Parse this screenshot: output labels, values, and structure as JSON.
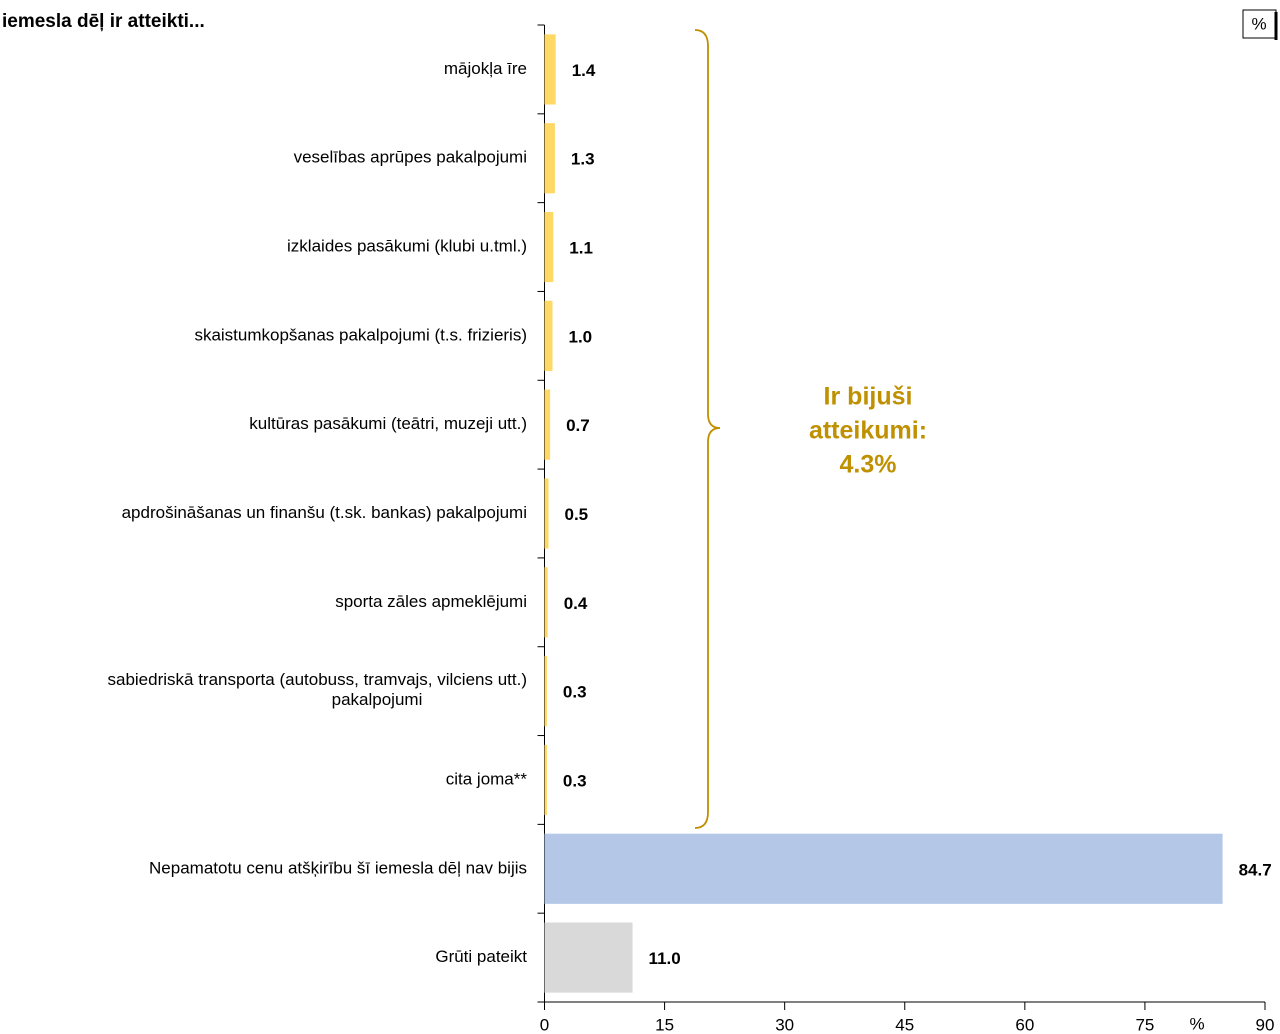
{
  "chart_data": {
    "type": "hbar",
    "title": "iemesla dēļ ir atteikti...",
    "unit_box": "%",
    "xlabel": "%",
    "annotation": [
      "Ir bijuši",
      "atteikumi:",
      "4.3%"
    ],
    "categories": [
      "mājokļa īre",
      "veselības aprūpes pakalpojumi",
      "izklaides pasākumi (klubi u.tml.)",
      "skaistumkopšanas pakalpojumi (t.s. frizieris)",
      "kultūras pasākumi (teātri, muzeji utt.)",
      "apdrošināšanas un finanšu (t.sk. bankas) pakalpojumi",
      "sporta zāles apmeklējumi",
      "sabiedriskā transporta (autobuss, tramvajs, vilciens utt.)\npakalpojumi",
      "cita joma**",
      "Nepamatotu cenu atšķirību šī iemesla dēļ nav bijis",
      "Grūti pateikt"
    ],
    "values": [
      1.4,
      1.3,
      1.1,
      1.0,
      0.7,
      0.5,
      0.4,
      0.3,
      0.3,
      84.7,
      11.0
    ],
    "value_labels": [
      "1.4",
      "1.3",
      "1.1",
      "1.0",
      "0.7",
      "0.5",
      "0.4",
      "0.3",
      "0.3",
      "84.7",
      "11.0"
    ],
    "colors": [
      "#ffd966",
      "#ffd966",
      "#ffd966",
      "#ffd966",
      "#ffd966",
      "#ffd966",
      "#ffd966",
      "#ffd966",
      "#ffd966",
      "#b4c7e7",
      "#d9d9d9"
    ],
    "xlim": [
      0,
      90
    ],
    "xticks": [
      0,
      15,
      30,
      45,
      60,
      75,
      90
    ]
  }
}
